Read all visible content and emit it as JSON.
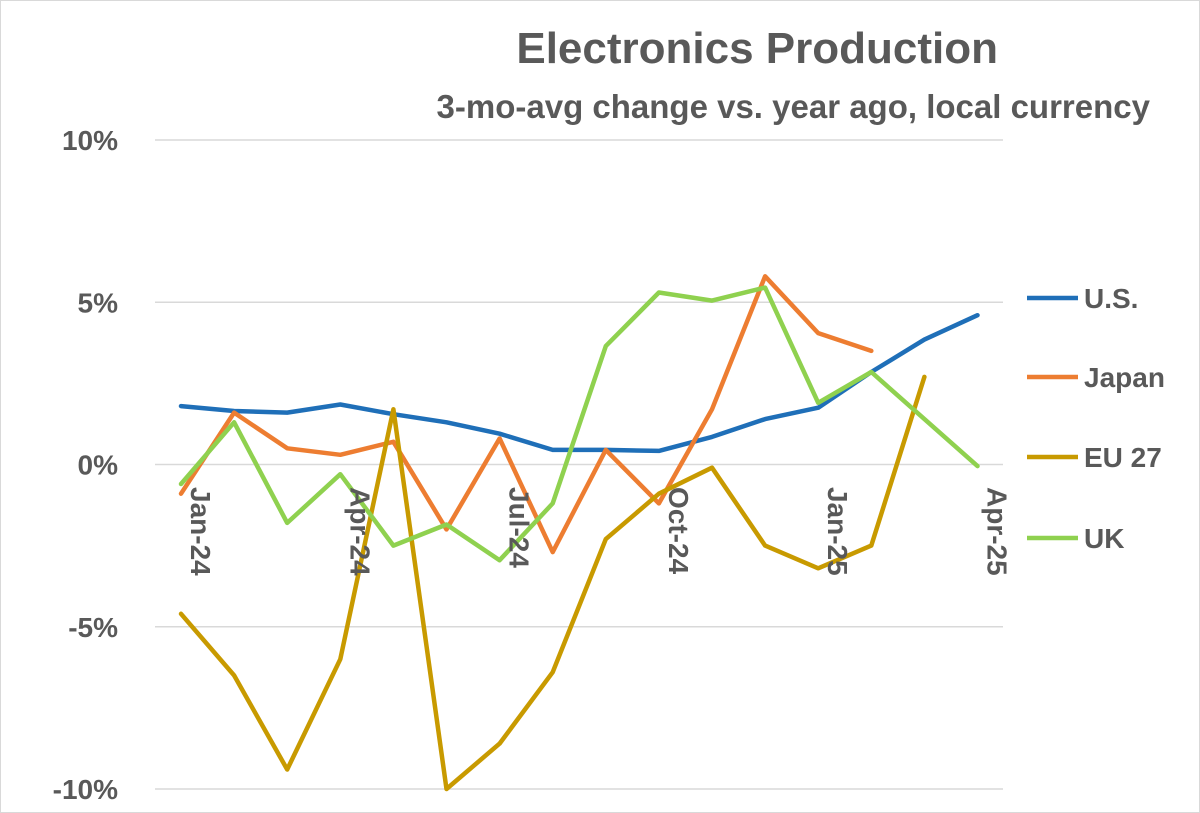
{
  "chart_data": {
    "type": "line",
    "title": "Electronics Production",
    "subtitle": "3-mo-avg change vs. year ago, local currency",
    "x": [
      "Jan-24",
      "Feb-24",
      "Mar-24",
      "Apr-24",
      "May-24",
      "Jun-24",
      "Jul-24",
      "Aug-24",
      "Sep-24",
      "Oct-24",
      "Nov-24",
      "Dec-24",
      "Jan-25",
      "Feb-25",
      "Mar-25",
      "Apr-25"
    ],
    "x_tick_labels": [
      "Jan-24",
      "Apr-24",
      "Jul-24",
      "Oct-24",
      "Jan-25",
      "Apr-25"
    ],
    "ylim": [
      -10,
      10
    ],
    "y_ticks": [
      10,
      5,
      0,
      -5,
      -10
    ],
    "y_tick_labels": [
      "10%",
      "5%",
      "0%",
      "-5%",
      "-10%"
    ],
    "grid": true,
    "legend_position": "right",
    "series": [
      {
        "name": "U.S.",
        "color": "#1f6fb8",
        "values": [
          1.8,
          1.65,
          1.6,
          1.85,
          1.55,
          1.3,
          0.95,
          0.45,
          0.45,
          0.42,
          0.85,
          1.4,
          1.75,
          2.85,
          3.85,
          4.6
        ]
      },
      {
        "name": "Japan",
        "color": "#ed7d31",
        "values": [
          -0.9,
          1.6,
          0.5,
          0.3,
          0.7,
          -2.0,
          0.8,
          -2.7,
          0.45,
          -1.2,
          1.7,
          5.8,
          4.05,
          3.5,
          null,
          null
        ]
      },
      {
        "name": "EU 27",
        "color": "#c89a00",
        "values": [
          -4.6,
          -6.5,
          -9.4,
          -6.0,
          1.7,
          -10.0,
          -8.6,
          -6.4,
          -2.3,
          -0.9,
          -0.1,
          -2.5,
          -3.2,
          -2.5,
          2.7,
          null
        ]
      },
      {
        "name": "UK",
        "color": "#8fd14f",
        "values": [
          -0.6,
          1.3,
          -1.8,
          -0.3,
          -2.5,
          -1.85,
          -2.95,
          -1.2,
          3.65,
          5.3,
          5.05,
          5.45,
          1.9,
          2.85,
          1.4,
          -0.05
        ]
      }
    ]
  }
}
